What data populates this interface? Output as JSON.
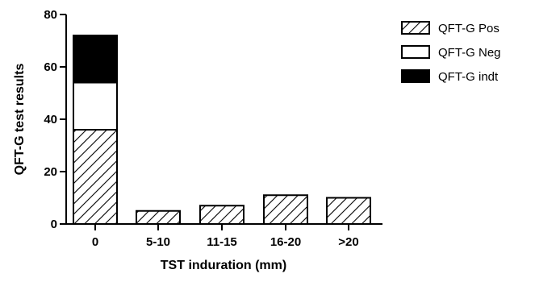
{
  "chart_data": {
    "type": "bar",
    "stacked": true,
    "categories": [
      "0",
      "5-10",
      "11-15",
      "16-20",
      ">20"
    ],
    "series": [
      {
        "name": "QFT-G Pos",
        "values": [
          36,
          5,
          7,
          11,
          10
        ],
        "fill": "hatch"
      },
      {
        "name": "QFT-G Neg",
        "values": [
          18,
          0,
          0,
          0,
          0
        ],
        "fill": "#ffffff"
      },
      {
        "name": "QFT-G indt",
        "values": [
          18,
          0,
          0,
          0,
          0
        ],
        "fill": "#000000"
      }
    ],
    "xlabel": "TST induration (mm)",
    "ylabel": "QFT-G test results",
    "ylim": [
      0,
      80
    ],
    "yticks": [
      "0",
      "20",
      "40",
      "60",
      "80"
    ],
    "grid": false,
    "legend_position": "top-right"
  }
}
